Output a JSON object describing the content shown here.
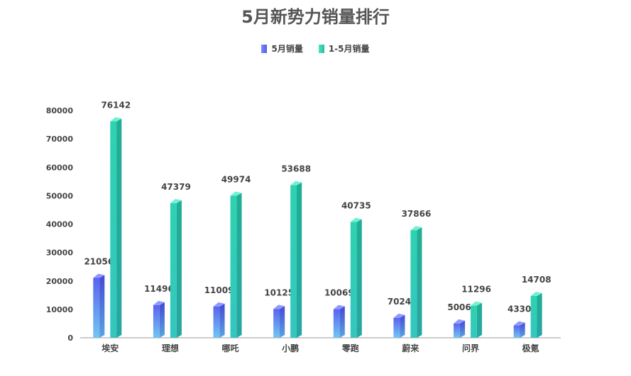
{
  "chart_data": {
    "type": "bar",
    "title": "5月新势力销量排行",
    "categories": [
      "埃安",
      "理想",
      "哪吒",
      "小鹏",
      "零跑",
      "蔚来",
      "问界",
      "极氪"
    ],
    "series": [
      {
        "name": "5月销量",
        "values": [
          21056,
          11496,
          11009,
          10125,
          10069,
          7024,
          5006,
          4330
        ],
        "color": "#5a6cf0"
      },
      {
        "name": "1-5月销量",
        "values": [
          76142,
          47379,
          49974,
          53688,
          40735,
          37866,
          11296,
          14708
        ],
        "color": "#2ec9a9"
      }
    ],
    "ylim": [
      0,
      80000
    ],
    "yticks": [
      "0",
      "10000",
      "20000",
      "30000",
      "40000",
      "50000",
      "60000",
      "70000",
      "80000"
    ],
    "grid": false,
    "legend_position": "top-center"
  }
}
